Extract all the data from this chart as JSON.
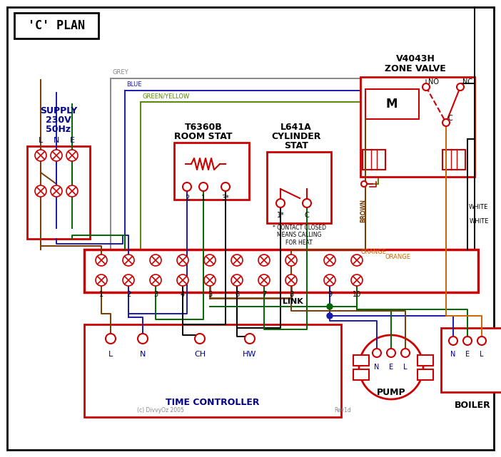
{
  "title": "'C' PLAN",
  "bg_color": "#ffffff",
  "RED": "#cc0000",
  "BLUE": "#1a1aaa",
  "GREEN": "#006600",
  "BROWN": "#7a3a00",
  "BLACK": "#000000",
  "ORANGE": "#cc6600",
  "GREY": "#888888",
  "GY": "#558800",
  "LBLUE": "#00008b",
  "copyright": "(c) DivvyOz 2005",
  "rev": "Rev1d"
}
